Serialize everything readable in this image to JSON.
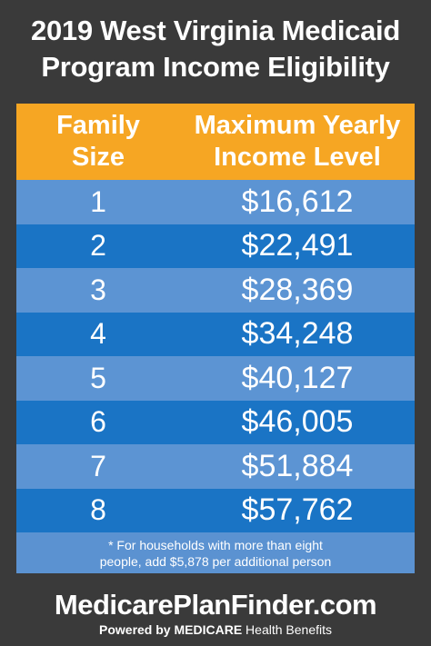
{
  "header": {
    "line1": "2019 West Virginia Medicaid",
    "line2": "Program Income Eligibility"
  },
  "table": {
    "col1_line1": "Family",
    "col1_line2": "Size",
    "col2_line1": "Maximum Yearly",
    "col2_line2": "Income Level",
    "rows": [
      {
        "size": "1",
        "income": "$16,612"
      },
      {
        "size": "2",
        "income": "$22,491"
      },
      {
        "size": "3",
        "income": "$28,369"
      },
      {
        "size": "4",
        "income": "$34,248"
      },
      {
        "size": "5",
        "income": "$40,127"
      },
      {
        "size": "6",
        "income": "$46,005"
      },
      {
        "size": "7",
        "income": "$51,884"
      },
      {
        "size": "8",
        "income": "$57,762"
      }
    ],
    "footnote_line1": "* For households with more than eight",
    "footnote_line2": "people, add $5,878 per additional person"
  },
  "footer": {
    "brand": "MedicarePlanFinder.com",
    "tagline_prefix": "Powered by",
    "tagline_brand": "MEDICARE",
    "tagline_suffix": "Health Benefits"
  },
  "colors": {
    "background": "#3a3a3a",
    "header_row": "#f6a623",
    "row_light": "#5c94d3",
    "row_dark": "#1a74c5"
  }
}
